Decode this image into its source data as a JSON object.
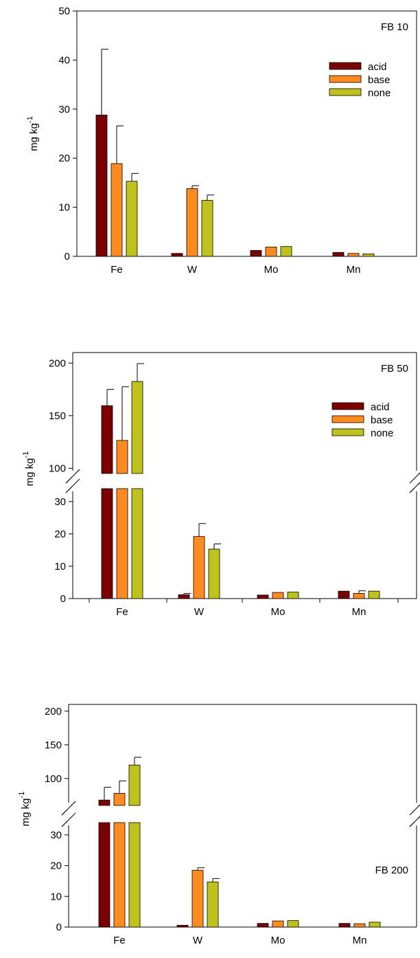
{
  "colors": {
    "acid": "#7b0000",
    "base": "#ff8a1e",
    "none": "#bfc21a",
    "axis": "#000000",
    "background": "#ffffff"
  },
  "legend": [
    {
      "key": "acid",
      "label": "acid"
    },
    {
      "key": "base",
      "label": "base"
    },
    {
      "key": "none",
      "label": "none"
    }
  ],
  "chart_data": [
    {
      "type": "bar",
      "title": "FB 10",
      "ylabel": "mg kg-1",
      "categories": [
        "Fe",
        "W",
        "Mo",
        "Mn"
      ],
      "ylim": [
        0,
        50
      ],
      "yticks": [
        0,
        10,
        20,
        30,
        40,
        50
      ],
      "broken_axis": false,
      "legend_shown": true,
      "legend_position": "upper-right",
      "series": [
        {
          "name": "acid",
          "values": [
            28.8,
            0.6,
            1.2,
            0.8
          ],
          "errors": [
            13.4,
            0,
            0,
            0
          ]
        },
        {
          "name": "base",
          "values": [
            18.9,
            13.8,
            1.9,
            0.6
          ],
          "errors": [
            7.7,
            0.6,
            0,
            0
          ]
        },
        {
          "name": "none",
          "values": [
            15.3,
            11.4,
            2.0,
            0.5
          ],
          "errors": [
            1.6,
            1.1,
            0,
            0
          ]
        }
      ]
    },
    {
      "type": "bar",
      "title": "FB 50",
      "ylabel": "mg kg-1",
      "categories": [
        "Fe",
        "W",
        "Mo",
        "Mn"
      ],
      "yticks": [
        0,
        10,
        20,
        30,
        100,
        150,
        200
      ],
      "broken_axis": true,
      "lower_range": [
        0,
        34
      ],
      "upper_range": [
        95,
        210
      ],
      "legend_shown": true,
      "legend_position": "middle-right",
      "series": [
        {
          "name": "acid",
          "values": [
            159.5,
            1.2,
            1.1,
            2.3
          ],
          "errors": [
            15.5,
            0.4,
            0,
            0
          ]
        },
        {
          "name": "base",
          "values": [
            126.5,
            19.2,
            1.9,
            1.6
          ],
          "errors": [
            51.0,
            4.0,
            0,
            0.8
          ]
        },
        {
          "name": "none",
          "values": [
            182.5,
            15.3,
            2.0,
            2.3
          ],
          "errors": [
            17.0,
            1.6,
            0,
            0
          ]
        }
      ]
    },
    {
      "type": "bar",
      "title": "FB 200",
      "ylabel": "mg kg-1",
      "categories": [
        "Fe",
        "W",
        "Mo",
        "Mn"
      ],
      "yticks": [
        0,
        10,
        20,
        30,
        100,
        150,
        200
      ],
      "broken_axis": true,
      "lower_range": [
        0,
        34
      ],
      "upper_range": [
        60,
        210
      ],
      "legend_shown": false,
      "series": [
        {
          "name": "acid",
          "values": [
            68.0,
            0.6,
            1.2,
            1.2
          ],
          "errors": [
            19.0,
            0,
            0,
            0
          ]
        },
        {
          "name": "base",
          "values": [
            78.0,
            18.5,
            2.0,
            1.1
          ],
          "errors": [
            18.5,
            0.8,
            0,
            0
          ]
        },
        {
          "name": "none",
          "values": [
            120.0,
            14.7,
            2.1,
            1.6
          ],
          "errors": [
            11.5,
            1.1,
            0,
            0
          ]
        }
      ]
    }
  ]
}
